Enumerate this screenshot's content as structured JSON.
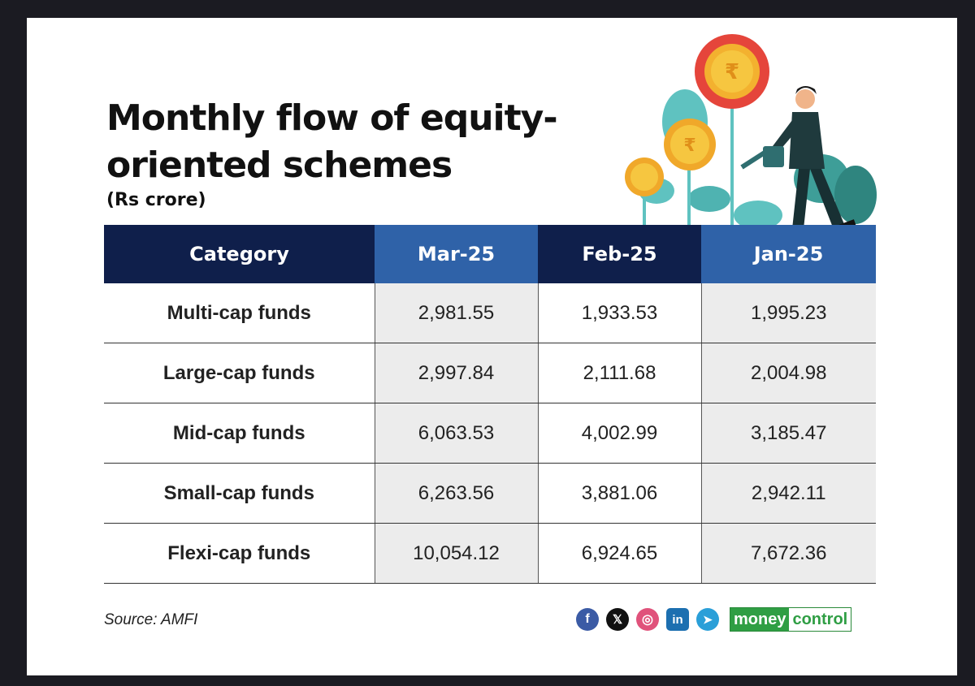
{
  "title": "Monthly flow of equity-oriented schemes",
  "subtitle": "(Rs crore)",
  "colors": {
    "navy": "#0f1f4b",
    "blue": "#2f62a8",
    "brand_green": "#2f9e44"
  },
  "chart_data": {
    "type": "table",
    "title": "Monthly flow of equity-oriented schemes",
    "unit": "(Rs crore)",
    "columns": [
      "Category",
      "Mar-25",
      "Feb-25",
      "Jan-25"
    ],
    "rows": [
      {
        "category": "Multi-cap funds",
        "values": [
          "2,981.55",
          "1,933.53",
          "1,995.23"
        ]
      },
      {
        "category": "Large-cap funds",
        "values": [
          "2,997.84",
          "2,111.68",
          "2,004.98"
        ]
      },
      {
        "category": "Mid-cap funds",
        "values": [
          "6,063.53",
          "4,002.99",
          "3,185.47"
        ]
      },
      {
        "category": "Small-cap funds",
        "values": [
          "6,263.56",
          "3,881.06",
          "2,942.11"
        ]
      },
      {
        "category": "Flexi-cap funds",
        "values": [
          "10,054.12",
          "6,924.65",
          "7,672.36"
        ]
      }
    ]
  },
  "footer": {
    "source": "Source: AMFI",
    "social_icons": [
      "facebook-icon",
      "x-icon",
      "instagram-icon",
      "linkedin-icon",
      "telegram-icon"
    ],
    "brand_part1": "money",
    "brand_part2": "control"
  }
}
